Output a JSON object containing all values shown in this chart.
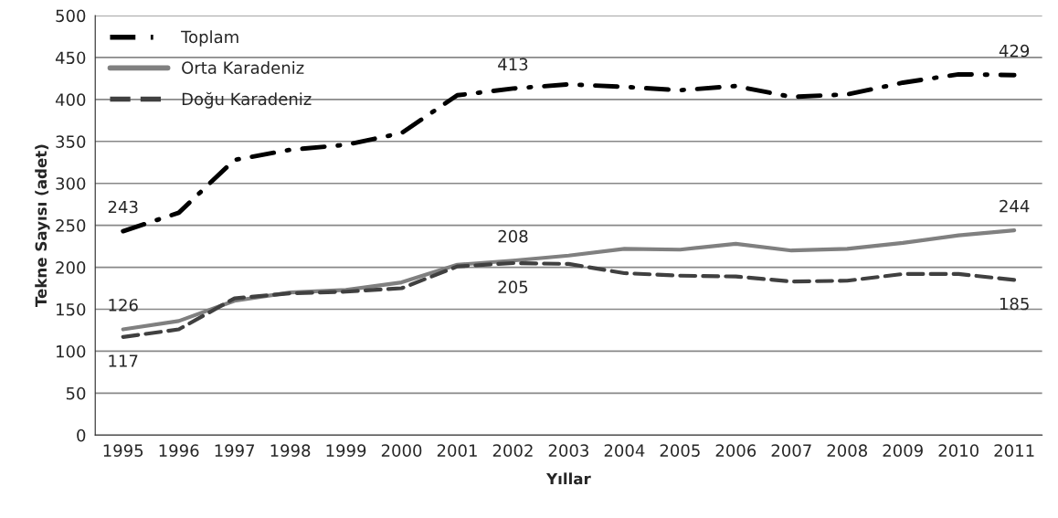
{
  "chart_data": {
    "type": "line",
    "xlabel": "Yıllar",
    "ylabel": "Tekne Sayısı (adet)",
    "categories": [
      "1995",
      "1996",
      "1997",
      "1998",
      "1999",
      "2000",
      "2001",
      "2002",
      "2003",
      "2004",
      "2005",
      "2006",
      "2007",
      "2008",
      "2009",
      "2010",
      "2011"
    ],
    "series": [
      {
        "name": "Toplam",
        "color": "#000000",
        "line_style": "dashdot",
        "values": [
          243,
          265,
          328,
          340,
          346,
          360,
          405,
          413,
          418,
          415,
          411,
          416,
          403,
          406,
          420,
          430,
          429
        ],
        "value_labels": [
          "243",
          null,
          null,
          null,
          null,
          null,
          null,
          "413",
          null,
          null,
          null,
          null,
          null,
          null,
          null,
          null,
          "429"
        ]
      },
      {
        "name": "Orta Karadeniz",
        "color": "#808080",
        "line_style": "solid",
        "values": [
          126,
          136,
          160,
          170,
          173,
          182,
          203,
          208,
          214,
          222,
          221,
          228,
          220,
          222,
          229,
          238,
          244
        ],
        "value_labels": [
          "126",
          null,
          null,
          null,
          null,
          null,
          null,
          "208",
          null,
          null,
          null,
          null,
          null,
          null,
          null,
          null,
          "244"
        ]
      },
      {
        "name": "Doğu Karadeniz",
        "color": "#404040",
        "line_style": "dashed",
        "values": [
          117,
          126,
          163,
          169,
          171,
          175,
          201,
          205,
          204,
          193,
          190,
          189,
          183,
          184,
          192,
          192,
          185
        ],
        "value_labels": [
          "117",
          null,
          null,
          null,
          null,
          null,
          null,
          "205",
          null,
          null,
          null,
          null,
          null,
          null,
          null,
          null,
          "185"
        ]
      }
    ],
    "ylim": [
      0,
      500
    ],
    "yticks": [
      0,
      50,
      100,
      150,
      200,
      250,
      300,
      350,
      400,
      450,
      500
    ],
    "grid": "y",
    "legend": "top left",
    "marker": "none"
  }
}
